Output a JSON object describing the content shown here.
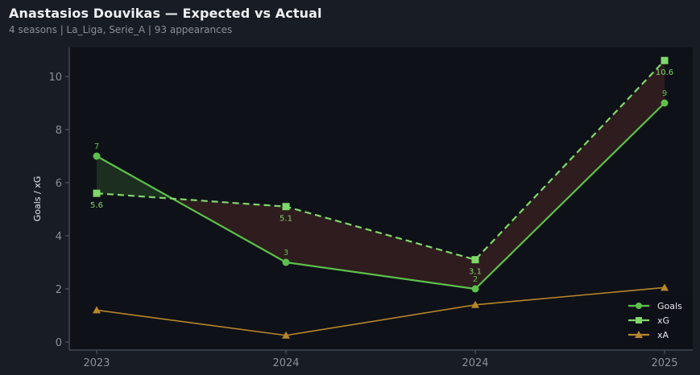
{
  "header": {
    "title": "Anastasios Douvikas — Expected vs Actual",
    "subtitle": "4 seasons | La_Liga, Serie_A | 93 appearances"
  },
  "colors": {
    "goals": "#5cc04a",
    "xg": "#7fd86a",
    "xa": "#b8862a",
    "fill_over": "#1c2e1f",
    "fill_under": "#2e1c1e",
    "plot_bg": "#0e1118",
    "page_bg": "#181c24",
    "axis": "#5a5f6a"
  },
  "chart_data": {
    "type": "line",
    "title": "Anastasios Douvikas — Expected vs Actual",
    "subtitle": "4 seasons | La_Liga, Serie_A | 93 appearances",
    "xlabel": "",
    "ylabel": "Goals / xG",
    "categories": [
      "2023",
      "2024",
      "2024",
      "2025"
    ],
    "ylim": [
      -0.3,
      11.1
    ],
    "yticks": [
      0,
      2,
      4,
      6,
      8,
      10
    ],
    "grid": false,
    "legend_position": "lower right",
    "series": [
      {
        "name": "Goals",
        "values": [
          7,
          3,
          2,
          9
        ],
        "style": "solid",
        "marker": "circle",
        "labels": [
          "7",
          "3",
          "2",
          "9"
        ]
      },
      {
        "name": "xG",
        "values": [
          5.6,
          5.1,
          3.1,
          10.6
        ],
        "style": "dashed",
        "marker": "square",
        "labels": [
          "5.6",
          "5.1",
          "3.1",
          "10.6"
        ]
      },
      {
        "name": "xA",
        "values": [
          1.2,
          0.25,
          1.4,
          2.05
        ],
        "style": "solid",
        "marker": "triangle"
      }
    ],
    "annotations": "Shaded region between Goals and xG: green where Goals > xG, dark red where Goals < xG"
  },
  "legend": {
    "items": [
      {
        "label": "Goals"
      },
      {
        "label": "xG"
      },
      {
        "label": "xA"
      }
    ]
  }
}
